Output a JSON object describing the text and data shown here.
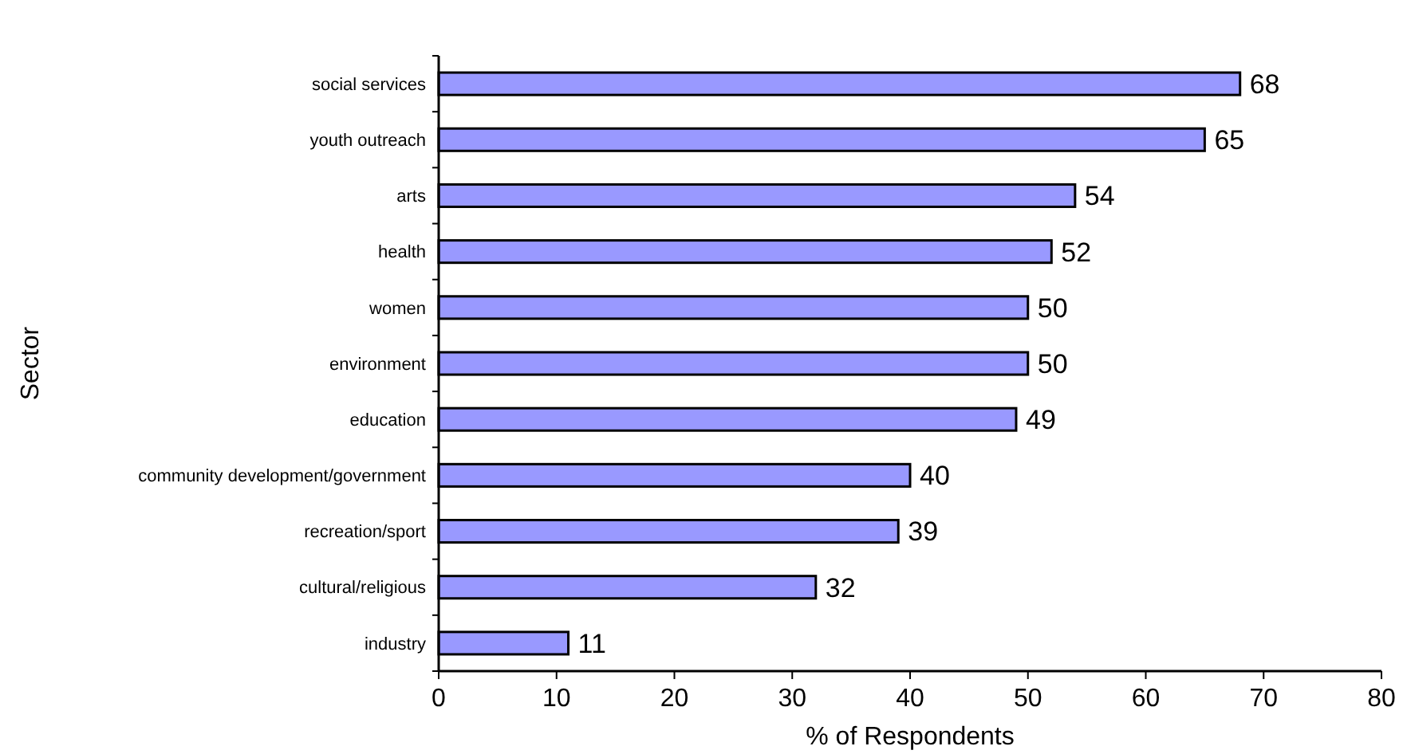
{
  "chart_data": {
    "type": "bar",
    "orientation": "horizontal",
    "xlabel": "% of Respondents",
    "ylabel": "Sector",
    "categories": [
      "social services",
      "youth outreach",
      "arts",
      "health",
      "women",
      "environment",
      "education",
      "community development/government",
      "recreation/sport",
      "cultural/religious",
      "industry"
    ],
    "values": [
      68,
      65,
      54,
      52,
      50,
      50,
      49,
      40,
      39,
      32,
      11
    ],
    "color": "#9999ff",
    "xlim": [
      0,
      80
    ],
    "xticks": [
      0,
      10,
      20,
      30,
      40,
      50,
      60,
      70,
      80
    ],
    "data_labels": true,
    "grid": false
  }
}
